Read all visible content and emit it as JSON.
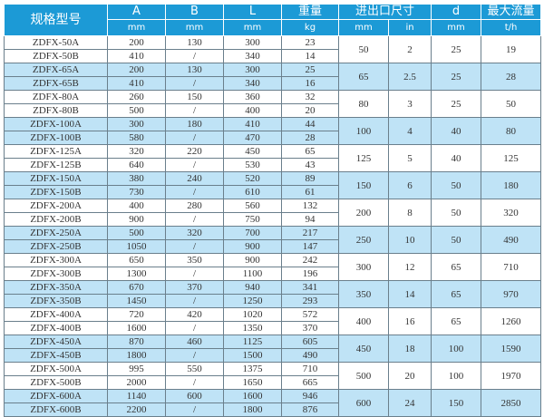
{
  "header": {
    "model": "规格型号",
    "A": "A",
    "A_unit": "mm",
    "B": "B",
    "B_unit": "mm",
    "L": "L",
    "L_unit": "mm",
    "weight": "重量",
    "weight_unit": "kg",
    "port": "进出口尺寸",
    "port_mm": "mm",
    "port_in": "in",
    "d": "d",
    "d_unit": "mm",
    "flow": "最大流量",
    "flow_unit": "t/h"
  },
  "colors": {
    "header": "#1c9ad6",
    "row_alt": "#bfe3f6"
  },
  "groups": [
    {
      "mm": "50",
      "in": "2",
      "d": "25",
      "flow": "19",
      "rows": [
        [
          "ZDFX-50A",
          "200",
          "130",
          "300",
          "23"
        ],
        [
          "ZDFX-50B",
          "410",
          "/",
          "340",
          "14"
        ]
      ]
    },
    {
      "mm": "65",
      "in": "2.5",
      "d": "25",
      "flow": "28",
      "rows": [
        [
          "ZDFX-65A",
          "200",
          "130",
          "300",
          "25"
        ],
        [
          "ZDFX-65B",
          "410",
          "/",
          "340",
          "16"
        ]
      ]
    },
    {
      "mm": "80",
      "in": "3",
      "d": "25",
      "flow": "50",
      "rows": [
        [
          "ZDFX-80A",
          "260",
          "150",
          "360",
          "32"
        ],
        [
          "ZDFX-80B",
          "500",
          "/",
          "400",
          "20"
        ]
      ]
    },
    {
      "mm": "100",
      "in": "4",
      "d": "40",
      "flow": "80",
      "rows": [
        [
          "ZDFX-100A",
          "300",
          "180",
          "410",
          "44"
        ],
        [
          "ZDFX-100B",
          "580",
          "/",
          "470",
          "28"
        ]
      ]
    },
    {
      "mm": "125",
      "in": "5",
      "d": "40",
      "flow": "125",
      "rows": [
        [
          "ZDFX-125A",
          "320",
          "220",
          "450",
          "65"
        ],
        [
          "ZDFX-125B",
          "640",
          "/",
          "530",
          "43"
        ]
      ]
    },
    {
      "mm": "150",
      "in": "6",
      "d": "50",
      "flow": "180",
      "rows": [
        [
          "ZDFX-150A",
          "380",
          "240",
          "520",
          "89"
        ],
        [
          "ZDFX-150B",
          "730",
          "/",
          "610",
          "61"
        ]
      ]
    },
    {
      "mm": "200",
      "in": "8",
      "d": "50",
      "flow": "320",
      "rows": [
        [
          "ZDFX-200A",
          "400",
          "280",
          "560",
          "132"
        ],
        [
          "ZDFX-200B",
          "900",
          "/",
          "750",
          "94"
        ]
      ]
    },
    {
      "mm": "250",
      "in": "10",
      "d": "50",
      "flow": "490",
      "rows": [
        [
          "ZDFX-250A",
          "500",
          "320",
          "700",
          "217"
        ],
        [
          "ZDFX-250B",
          "1050",
          "/",
          "900",
          "147"
        ]
      ]
    },
    {
      "mm": "300",
      "in": "12",
      "d": "65",
      "flow": "710",
      "rows": [
        [
          "ZDFX-300A",
          "650",
          "350",
          "900",
          "242"
        ],
        [
          "ZDFX-300B",
          "1300",
          "/",
          "1100",
          "196"
        ]
      ]
    },
    {
      "mm": "350",
      "in": "14",
      "d": "65",
      "flow": "970",
      "rows": [
        [
          "ZDFX-350A",
          "670",
          "370",
          "940",
          "341"
        ],
        [
          "ZDFX-350B",
          "1450",
          "/",
          "1250",
          "293"
        ]
      ]
    },
    {
      "mm": "400",
      "in": "16",
      "d": "65",
      "flow": "1260",
      "rows": [
        [
          "ZDFX-400A",
          "720",
          "420",
          "1020",
          "572"
        ],
        [
          "ZDFX-400B",
          "1600",
          "/",
          "1350",
          "370"
        ]
      ]
    },
    {
      "mm": "450",
      "in": "18",
      "d": "100",
      "flow": "1590",
      "rows": [
        [
          "ZDFX-450A",
          "870",
          "460",
          "1125",
          "605"
        ],
        [
          "ZDFX-450B",
          "1800",
          "/",
          "1500",
          "490"
        ]
      ]
    },
    {
      "mm": "500",
      "in": "20",
      "d": "100",
      "flow": "1970",
      "rows": [
        [
          "ZDFX-500A",
          "995",
          "550",
          "1375",
          "710"
        ],
        [
          "ZDFX-500B",
          "2000",
          "/",
          "1650",
          "665"
        ]
      ]
    },
    {
      "mm": "600",
      "in": "24",
      "d": "150",
      "flow": "2850",
      "rows": [
        [
          "ZDFX-600A",
          "1140",
          "600",
          "1600",
          "946"
        ],
        [
          "ZDFX-600B",
          "2200",
          "/",
          "1800",
          "876"
        ]
      ]
    }
  ]
}
